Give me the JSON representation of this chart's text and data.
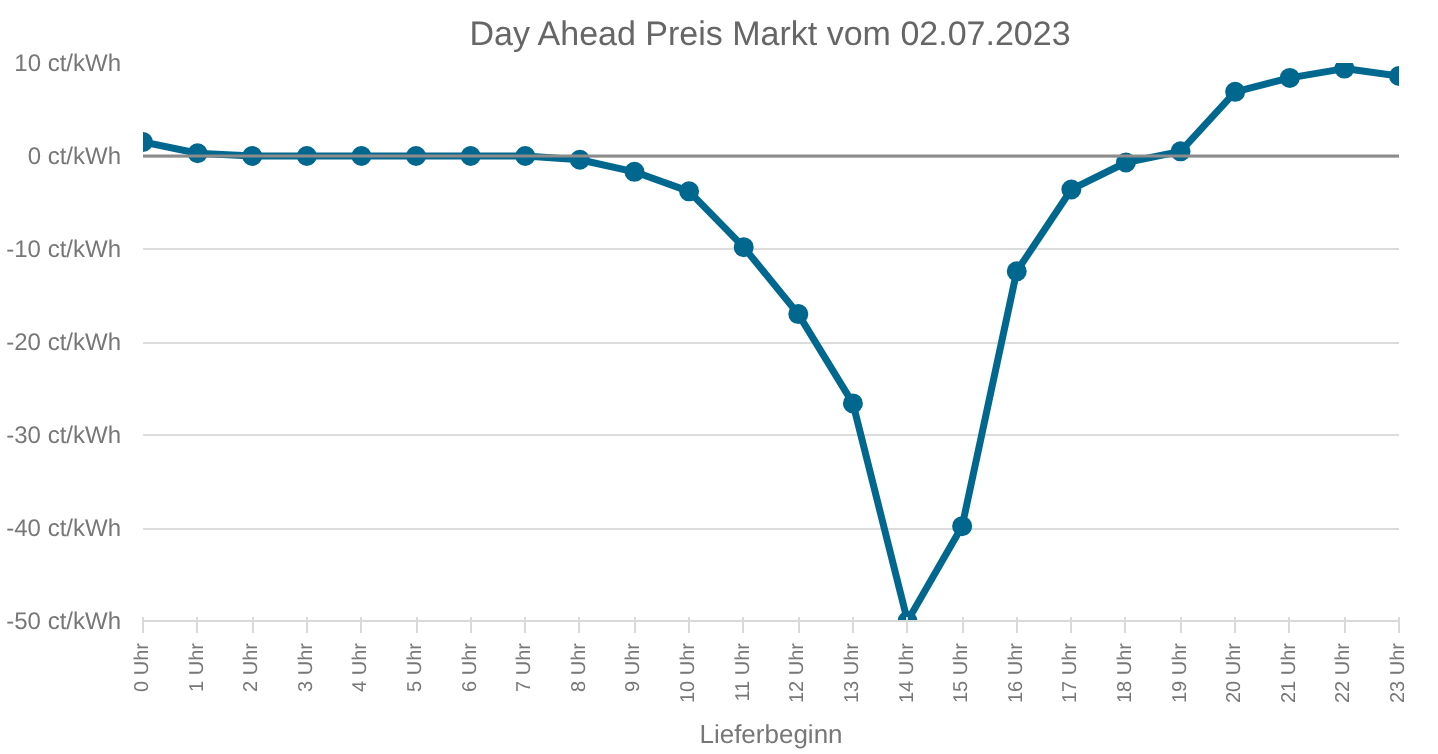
{
  "chart_data": {
    "type": "line",
    "title": "Day Ahead Preis Markt vom 02.07.2023",
    "xlabel": "Lieferbeginn",
    "categories": [
      "0 Uhr",
      "1 Uhr",
      "2 Uhr",
      "3 Uhr",
      "4 Uhr",
      "5 Uhr",
      "6 Uhr",
      "7 Uhr",
      "8 Uhr",
      "9 Uhr",
      "10 Uhr",
      "11 Uhr",
      "12 Uhr",
      "13 Uhr",
      "14 Uhr",
      "15 Uhr",
      "16 Uhr",
      "17 Uhr",
      "18 Uhr",
      "19 Uhr",
      "20 Uhr",
      "21 Uhr",
      "22 Uhr",
      "23 Uhr"
    ],
    "series": [
      {
        "color": "#00678f",
        "values": [
          1.5,
          0.3,
          0,
          0,
          0,
          0,
          0,
          0,
          -0.4,
          -1.7,
          -3.8,
          -9.8,
          -17,
          -26.6,
          -50,
          -39.8,
          -12.4,
          -3.6,
          -0.7,
          0.5,
          6.9,
          8.4,
          9.4,
          8.6
        ]
      }
    ],
    "ylim": [
      -50,
      10
    ],
    "yticks": [
      {
        "value": -50,
        "label": "-50 ct/kWh"
      },
      {
        "value": -40,
        "label": "-40 ct/kWh"
      },
      {
        "value": -30,
        "label": "-30 ct/kWh"
      },
      {
        "value": -20,
        "label": "-20 ct/kWh"
      },
      {
        "value": -10,
        "label": "-10 ct/kWh"
      },
      {
        "value": 0,
        "label": "0 ct/kWh"
      },
      {
        "value": 10,
        "label": "10 ct/kWh"
      }
    ],
    "ref_lines": [
      {
        "axis": "y",
        "value": 0,
        "color": "#8c8c8c"
      }
    ],
    "grid": "y",
    "marker": "circle",
    "line_style": "solid"
  }
}
